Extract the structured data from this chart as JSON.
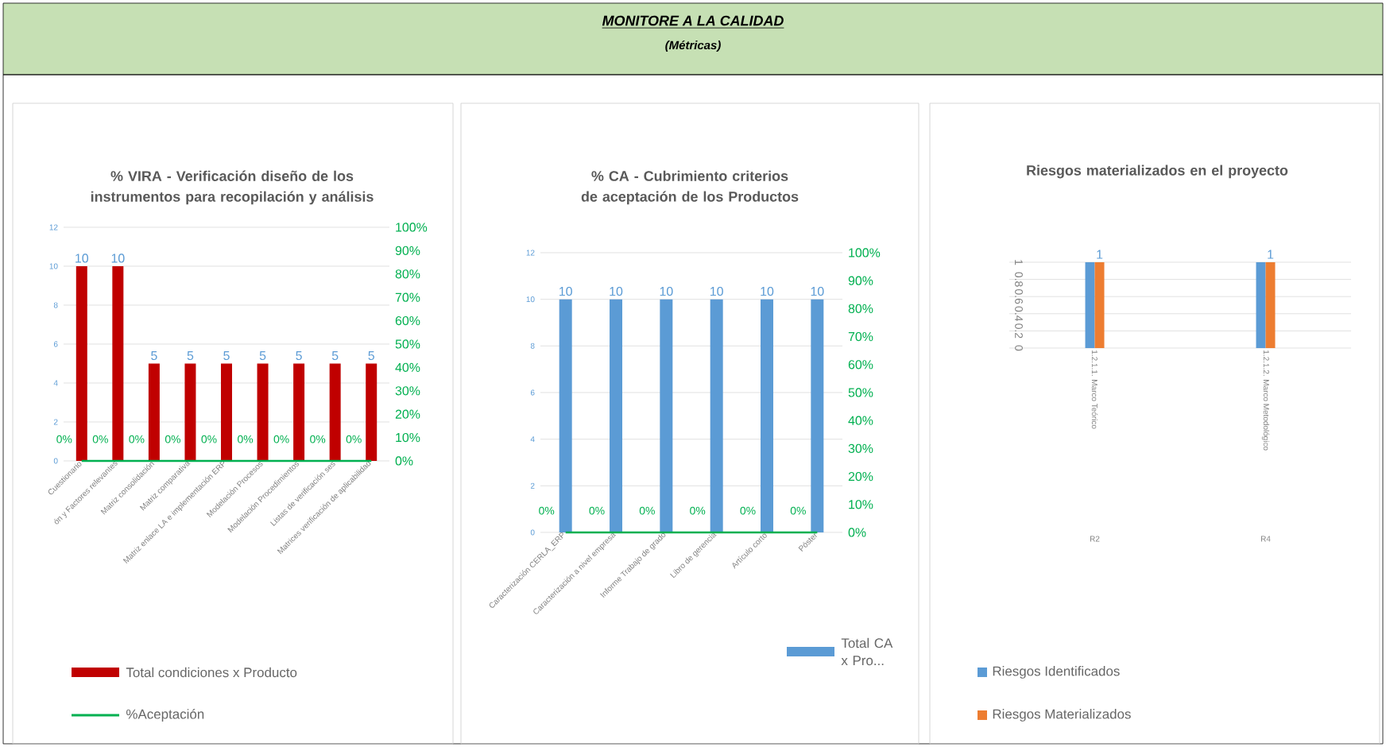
{
  "chart_data": [
    {
      "type": "other",
      "title": "MONITORE A LA CALIDAD",
      "subtitle": "(Métricas)"
    },
    {
      "type": "bar",
      "title": "% VIRA - Verificación diseño de los instrumentos para recopilación y análisis",
      "categories": [
        "Cuestionario",
        "ón y Factores relevantes",
        "Matriz consolidación",
        "Matriz comparativa",
        "Matriz enlace LA e implementación ERP",
        "Modelación Procesos",
        "Modelación Procedimientos",
        "Listas de verificación ses",
        "Matrices verificación de aplicabilidad"
      ],
      "series": [
        {
          "name": "Total condiciones  x Producto",
          "color": "#c00000",
          "values": [
            10,
            10,
            5,
            5,
            5,
            5,
            5,
            5,
            5
          ],
          "value_labels": [
            "10",
            "10",
            "5",
            "5",
            "5",
            "5",
            "5",
            "5",
            "5"
          ]
        },
        {
          "name": "%Aceptación",
          "type": "line",
          "axis": "y2",
          "color": "#00b050",
          "values": [
            0,
            0,
            0,
            0,
            0,
            0,
            0,
            0,
            0
          ],
          "value_labels": [
            "0%",
            "0%",
            "0%",
            "0%",
            "0%",
            "0%",
            "0%",
            "0%",
            "0%"
          ]
        }
      ],
      "ylim": [
        0,
        12
      ],
      "yticks": [
        0,
        2,
        4,
        6,
        8,
        10,
        12
      ],
      "y2lim": [
        0,
        100
      ],
      "y2ticks": [
        {
          "value": 0,
          "label": "0%"
        },
        {
          "value": 10,
          "label": "10%"
        },
        {
          "value": 20,
          "label": "20%"
        },
        {
          "value": 30,
          "label": "30%"
        },
        {
          "value": 40,
          "label": "40%"
        },
        {
          "value": 50,
          "label": "50%"
        },
        {
          "value": 60,
          "label": "60%"
        },
        {
          "value": 70,
          "label": "70%"
        },
        {
          "value": 80,
          "label": "80%"
        },
        {
          "value": 90,
          "label": "90%"
        },
        {
          "value": 100,
          "label": "100%"
        }
      ],
      "grid": "y",
      "legend": "bottom"
    },
    {
      "type": "bar",
      "title": "% CA - Cubrimiento criterios de aceptación de  los Productos",
      "categories": [
        "Caracterización CERLA_ERP",
        "Caracterización a nivel empresa",
        "Informe Trabajo de grado",
        "Libro de gerencia",
        "Artículo corto",
        "Póster"
      ],
      "series": [
        {
          "name": "Total CA x Pro...",
          "color": "#5b9bd5",
          "values": [
            10,
            10,
            10,
            10,
            10,
            10
          ],
          "value_labels": [
            "10",
            "10",
            "10",
            "10",
            "10",
            "10"
          ]
        },
        {
          "type": "line",
          "axis": "y2",
          "color": "#00b050",
          "values": [
            0,
            0,
            0,
            0,
            0,
            0
          ],
          "value_labels": [
            "0%",
            "0%",
            "0%",
            "0%",
            "0%",
            "0%"
          ]
        }
      ],
      "ylim": [
        0,
        12
      ],
      "yticks": [
        0,
        2,
        4,
        6,
        8,
        10,
        12
      ],
      "y2lim": [
        0,
        100
      ],
      "y2ticks": [
        {
          "value": 0,
          "label": "0%"
        },
        {
          "value": 10,
          "label": "10%"
        },
        {
          "value": 20,
          "label": "20%"
        },
        {
          "value": 30,
          "label": "30%"
        },
        {
          "value": 40,
          "label": "40%"
        },
        {
          "value": 50,
          "label": "50%"
        },
        {
          "value": 60,
          "label": "60%"
        },
        {
          "value": 70,
          "label": "70%"
        },
        {
          "value": 80,
          "label": "80%"
        },
        {
          "value": 90,
          "label": "90%"
        },
        {
          "value": 100,
          "label": "100%"
        }
      ],
      "grid": "y",
      "legend": "right"
    },
    {
      "type": "bar",
      "title": "Riesgos materializados en el proyecto",
      "categories": [
        "1.2.1.1. Marco Teórico",
        "1.2.1.2. Marco Metodológico"
      ],
      "series": [
        {
          "name": "Riesgos Identificados",
          "color": "#5b9bd5",
          "values": [
            1,
            1
          ]
        },
        {
          "name": "Riesgos Materializados",
          "color": "#ed7d31",
          "values": [
            1,
            1
          ],
          "value_labels": [
            "1",
            "1"
          ]
        }
      ],
      "ylim": [
        0,
        1
      ],
      "yticks": [
        0,
        0.2,
        0.4,
        0.6,
        0.8,
        1
      ],
      "annotations": [
        "R2",
        "R4"
      ],
      "grid": "y",
      "legend": "bottom"
    }
  ]
}
